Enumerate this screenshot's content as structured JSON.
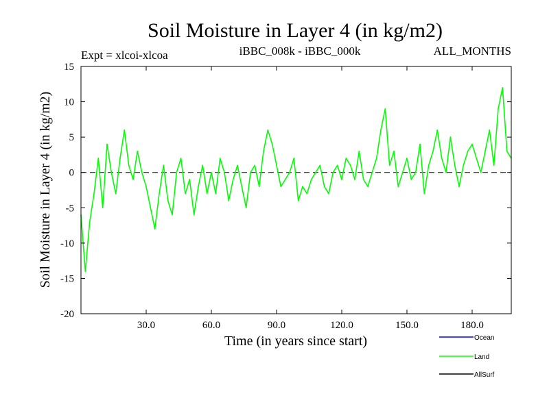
{
  "chart_data": {
    "type": "line",
    "title": "Soil Moisture in Layer 4 (in kg/m2)",
    "subtitle_left": "Expt = xlcoi-xlcoa",
    "subtitle_center": "iBBC_008k - iBBC_000k",
    "subtitle_right": "ALL_MONTHS",
    "xlabel": "Time (in years since start)",
    "ylabel": "Soil Moisture in Layer 4 (in kg/m2)",
    "xlim": [
      0,
      198
    ],
    "ylim": [
      -20,
      15
    ],
    "xticks": [
      30,
      60,
      90,
      120,
      150,
      180
    ],
    "xtick_labels": [
      "30.0",
      "60.0",
      "90.0",
      "120.0",
      "150.0",
      "180.0"
    ],
    "yticks": [
      -20,
      -15,
      -10,
      -5,
      0,
      5,
      10,
      15
    ],
    "ytick_labels": [
      "-20",
      "-15",
      "-10",
      "-5",
      "0",
      "5",
      "10",
      "15"
    ],
    "reference_line": 0,
    "legend_position": "bottom-right, outside plot",
    "series": [
      {
        "name": "Ocean",
        "color": "#0000ff",
        "values": []
      },
      {
        "name": "Land",
        "color": "#00ff00",
        "x": [
          0,
          2,
          4,
          6,
          8,
          10,
          12,
          14,
          16,
          18,
          20,
          22,
          24,
          26,
          28,
          30,
          32,
          34,
          36,
          38,
          40,
          42,
          44,
          46,
          48,
          50,
          52,
          54,
          56,
          58,
          60,
          62,
          64,
          66,
          68,
          70,
          72,
          74,
          76,
          78,
          80,
          82,
          84,
          86,
          88,
          90,
          92,
          94,
          96,
          98,
          100,
          102,
          104,
          106,
          108,
          110,
          112,
          114,
          116,
          118,
          120,
          122,
          124,
          126,
          128,
          130,
          132,
          134,
          136,
          138,
          140,
          142,
          144,
          146,
          148,
          150,
          152,
          154,
          156,
          158,
          160,
          162,
          164,
          166,
          168,
          170,
          172,
          174,
          176,
          178,
          180,
          182,
          184,
          186,
          188,
          190,
          192,
          194,
          196,
          198
        ],
        "values": [
          -6,
          -14,
          -7,
          -3,
          2,
          -5,
          4,
          0,
          -3,
          2,
          6,
          1,
          -1,
          3,
          0,
          -2,
          -5,
          -8,
          -3,
          1,
          -4,
          -6,
          0,
          2,
          -3,
          -1,
          -6,
          -2,
          1,
          -3,
          0,
          -3,
          2,
          0,
          -4,
          -1,
          1,
          -2,
          -5,
          0,
          1,
          -2,
          3,
          6,
          4,
          1,
          -2,
          -1,
          0,
          2,
          -4,
          -2,
          -3,
          -1,
          0,
          1,
          -2,
          -3,
          0,
          1,
          -1,
          2,
          1,
          -1,
          3,
          -1,
          -2,
          0,
          2,
          6,
          9,
          1,
          3,
          -2,
          0,
          2,
          -1,
          0,
          4,
          -3,
          1,
          3,
          6,
          2,
          0,
          5,
          1,
          -2,
          1,
          3,
          4,
          2,
          0,
          3,
          6,
          1,
          9,
          12,
          3,
          2
        ]
      },
      {
        "name": "AllSurf",
        "color": "#000000",
        "values": []
      }
    ]
  }
}
